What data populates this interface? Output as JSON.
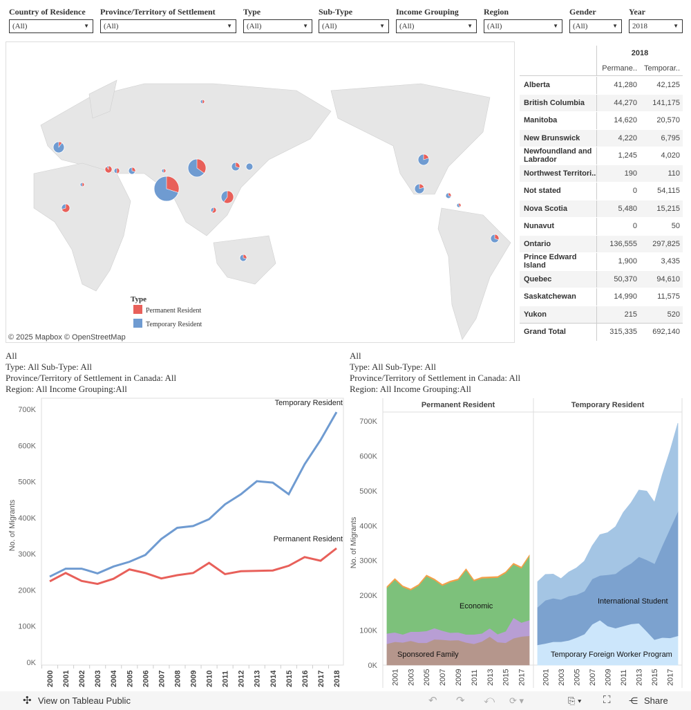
{
  "filters": [
    {
      "label": "Country of Residence",
      "value": "(All)"
    },
    {
      "label": "Province/Territory of Settlement",
      "value": "(All)"
    },
    {
      "label": "Type",
      "value": "(All)"
    },
    {
      "label": "Sub-Type",
      "value": "(All)"
    },
    {
      "label": "Income Grouping",
      "value": "(All)"
    },
    {
      "label": "Region",
      "value": "(All)"
    },
    {
      "label": "Gender",
      "value": "(All)"
    },
    {
      "label": "Year",
      "value": "2018"
    }
  ],
  "map": {
    "legend_title": "Type",
    "legend": [
      {
        "label": "Permanent Resident",
        "color": "#e8605a"
      },
      {
        "label": "Temporary Resident",
        "color": "#6f9bd1"
      }
    ],
    "attribution": "© 2025 Mapbox © OpenStreetMap"
  },
  "table": {
    "year": "2018",
    "columns": [
      "Permane..",
      "Temporar.."
    ],
    "rows": [
      {
        "name": "Alberta",
        "p": "41,280",
        "t": "42,125"
      },
      {
        "name": "British Columbia",
        "p": "44,270",
        "t": "141,175"
      },
      {
        "name": "Manitoba",
        "p": "14,620",
        "t": "20,570"
      },
      {
        "name": "New Brunswick",
        "p": "4,220",
        "t": "6,795"
      },
      {
        "name": "Newfoundland and Labrador",
        "p": "1,245",
        "t": "4,020"
      },
      {
        "name": "Northwest Territori..",
        "p": "190",
        "t": "110"
      },
      {
        "name": "Not stated",
        "p": "0",
        "t": "54,115"
      },
      {
        "name": "Nova Scotia",
        "p": "5,480",
        "t": "15,215"
      },
      {
        "name": "Nunavut",
        "p": "0",
        "t": "50"
      },
      {
        "name": "Ontario",
        "p": "136,555",
        "t": "297,825"
      },
      {
        "name": "Prince Edward Island",
        "p": "1,900",
        "t": "3,435"
      },
      {
        "name": "Quebec",
        "p": "50,370",
        "t": "94,610"
      },
      {
        "name": "Saskatchewan",
        "p": "14,990",
        "t": "11,575"
      },
      {
        "name": "Yukon",
        "p": "215",
        "t": "520"
      },
      {
        "name": "Grand Total",
        "p": "315,335",
        "t": "692,140"
      }
    ]
  },
  "captions": {
    "left": [
      "All",
      "Type: All Sub-Type: All",
      "Province/Territory of Settlement in Canada: All",
      "Region: All Income Grouping:All"
    ],
    "right": [
      "All",
      "Type: All Sub-Type: All",
      "Province/Territory of Settlement in Canada: All",
      "Region: All Income Grouping:All"
    ]
  },
  "chart_data": [
    {
      "type": "line",
      "ylabel": "No. of Migrants",
      "ylim": [
        0,
        700000
      ],
      "yticks": [
        "0K",
        "100K",
        "200K",
        "300K",
        "400K",
        "500K",
        "600K",
        "700K"
      ],
      "x": [
        2000,
        2001,
        2002,
        2003,
        2004,
        2005,
        2006,
        2007,
        2008,
        2009,
        2010,
        2011,
        2012,
        2013,
        2014,
        2015,
        2016,
        2017,
        2018
      ],
      "series": [
        {
          "name": "Temporary Resident",
          "color": "#6f9bd1",
          "values": [
            237000,
            259000,
            259000,
            246000,
            265000,
            278000,
            297000,
            341000,
            372000,
            377000,
            396000,
            437000,
            465000,
            501000,
            497000,
            465000,
            548000,
            615000,
            692140
          ]
        },
        {
          "name": "Permanent Resident",
          "color": "#e8605a",
          "values": [
            224000,
            247000,
            225000,
            217000,
            231000,
            257000,
            247000,
            232000,
            241000,
            247000,
            275000,
            244000,
            252000,
            253000,
            254000,
            267000,
            291000,
            281000,
            315335
          ]
        }
      ]
    },
    {
      "type": "area",
      "stacked": true,
      "ylabel": "No. of Migrants",
      "ylim": [
        0,
        700000
      ],
      "yticks": [
        "0K",
        "100K",
        "200K",
        "300K",
        "400K",
        "500K",
        "600K",
        "700K"
      ],
      "x": [
        2000,
        2001,
        2002,
        2003,
        2004,
        2005,
        2006,
        2007,
        2008,
        2009,
        2010,
        2011,
        2012,
        2013,
        2014,
        2015,
        2016,
        2017,
        2018
      ],
      "xticks": [
        "2001",
        "2003",
        "2005",
        "2007",
        "2009",
        "2011",
        "2013",
        "2015",
        "2017"
      ],
      "panels": [
        {
          "title": "Permanent Resident",
          "series": [
            {
              "name": "Sponsored Family",
              "color": "#b5968c",
              "values": [
                61000,
                67000,
                65000,
                70000,
                64000,
                64000,
                74000,
                73000,
                71000,
                72000,
                65000,
                61000,
                68000,
                82000,
                66000,
                64000,
                77000,
                82000,
                84000
              ]
            },
            {
              "color": "#b89ed4",
              "values": [
                30000,
                27000,
                23000,
                26000,
                32000,
                34000,
                32000,
                26000,
                22000,
                22000,
                23000,
                27000,
                23000,
                24000,
                23000,
                33000,
                59000,
                40000,
                45000
              ]
            },
            {
              "name": "Economic",
              "color": "#7dc17b",
              "values": [
                131000,
                151000,
                136000,
                119000,
                132000,
                157000,
                138000,
                129000,
                145000,
                150000,
                185000,
                153000,
                158000,
                144000,
                162000,
                167000,
                153000,
                156000,
                183000
              ]
            },
            {
              "color": "#f4a04a",
              "values": [
                3000,
                3000,
                3000,
                3000,
                3000,
                3000,
                3000,
                3000,
                3000,
                3000,
                3000,
                3000,
                3000,
                3000,
                3000,
                3000,
                3000,
                3000,
                3000
              ]
            }
          ]
        },
        {
          "title": "Temporary Resident",
          "series": [
            {
              "name": "Temporary Foreign Worker Program",
              "color": "#cce6fb",
              "values": [
                58000,
                62000,
                67000,
                67000,
                71000,
                79000,
                89000,
                117000,
                129000,
                112000,
                106000,
                112000,
                118000,
                120000,
                97000,
                73000,
                79000,
                78000,
                84000
              ]
            },
            {
              "name": "International Student",
              "color": "#7ca2cf",
              "values": [
                108000,
                124000,
                125000,
                121000,
                127000,
                123000,
                123000,
                130000,
                128000,
                147000,
                156000,
                167000,
                174000,
                191000,
                205000,
                218000,
                264000,
                314000,
                357000
              ]
            },
            {
              "color": "#a4c5e4",
              "values": [
                73000,
                74000,
                69000,
                60000,
                69000,
                77000,
                86000,
                95000,
                117000,
                121000,
                135000,
                159000,
                174000,
                191000,
                197000,
                176000,
                203000,
                223000,
                253000
              ]
            }
          ]
        }
      ]
    }
  ],
  "footer": {
    "view_label": "View on Tableau Public",
    "share_label": "Share"
  }
}
